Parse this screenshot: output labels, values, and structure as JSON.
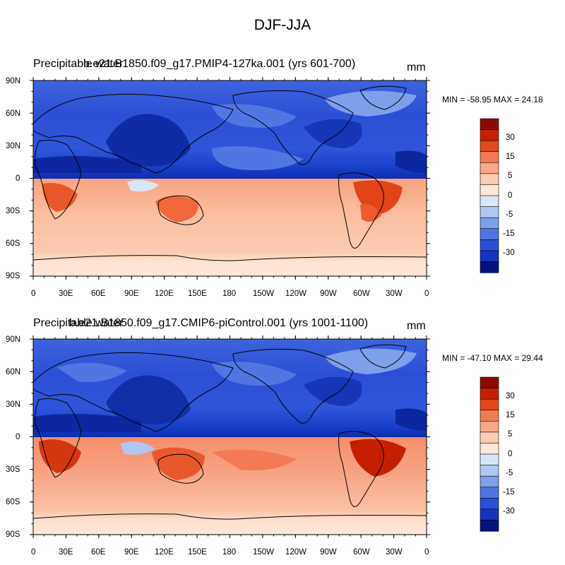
{
  "figure": {
    "title": "DJF-JJA"
  },
  "axes": {
    "lat_labels": [
      "90N",
      "60N",
      "30N",
      "0",
      "30S",
      "60S",
      "90S"
    ],
    "lon_labels": [
      "0",
      "30E",
      "60E",
      "90E",
      "120E",
      "150E",
      "180",
      "150W",
      "120W",
      "90W",
      "60W",
      "30W",
      "0"
    ]
  },
  "colorbar": {
    "labels": [
      "30",
      "15",
      "5",
      "0",
      "-5",
      "-15",
      "-30"
    ],
    "colors": [
      "#8c0a00",
      "#c51f00",
      "#e3491c",
      "#f37a55",
      "#f9a988",
      "#fccbb0",
      "#fde8da",
      "#d9e6f8",
      "#b0c8f0",
      "#7ca0ea",
      "#4e75e3",
      "#2a4fd9",
      "#1234c0",
      "#00147e"
    ]
  },
  "panels": [
    {
      "title_overlay_a": "Precipitable water",
      "title_overlay_b": "b.e21.B1850.f09_g17.PMIP4-127ka.001 (yrs 601-700)",
      "units": "mm",
      "stats": "MIN = -58.95 MAX =  24.18",
      "min": -58.95,
      "max": 24.18
    },
    {
      "title_overlay_a": "Precipitable water",
      "title_overlay_b": "b.e21.B1850.f09_g17.CMIP6-piControl.001 (yrs 1001-1100)",
      "units": "mm",
      "stats": "MIN = -47.10 MAX =  29.44",
      "min": -47.1,
      "max": 29.44
    }
  ]
}
